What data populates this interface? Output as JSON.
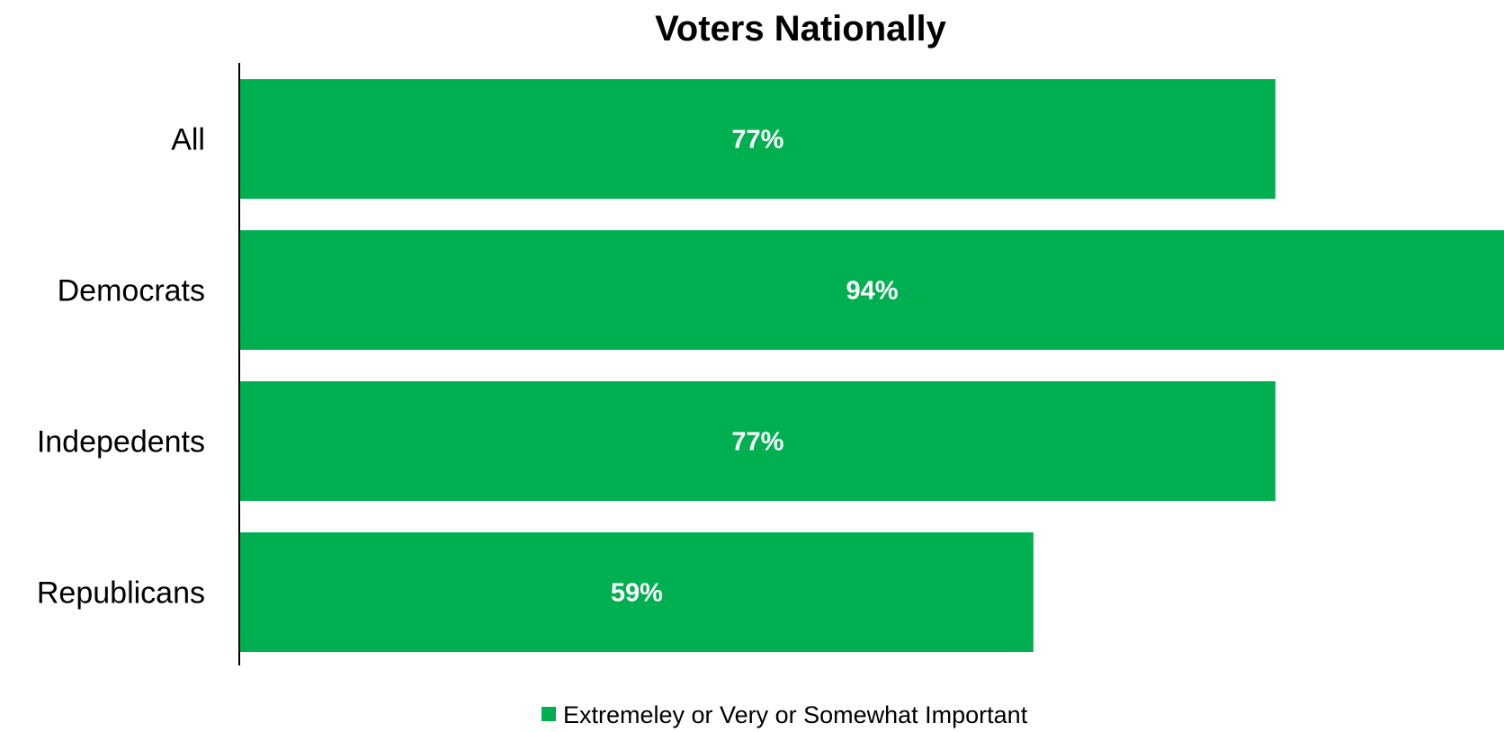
{
  "chart_data": {
    "type": "bar",
    "orientation": "horizontal",
    "title": "Voters Nationally",
    "categories": [
      "All",
      "Democrats",
      "Indepedents",
      "Republicans"
    ],
    "series": [
      {
        "name": "Extremeley or Very or Somewhat Important",
        "values": [
          77,
          94,
          77,
          59
        ],
        "labels": [
          "77%",
          "94%",
          "77%",
          "59%"
        ],
        "color": "#00B050"
      }
    ],
    "xlim": [
      0,
      94
    ],
    "grid": false,
    "legend_position": "bottom"
  }
}
